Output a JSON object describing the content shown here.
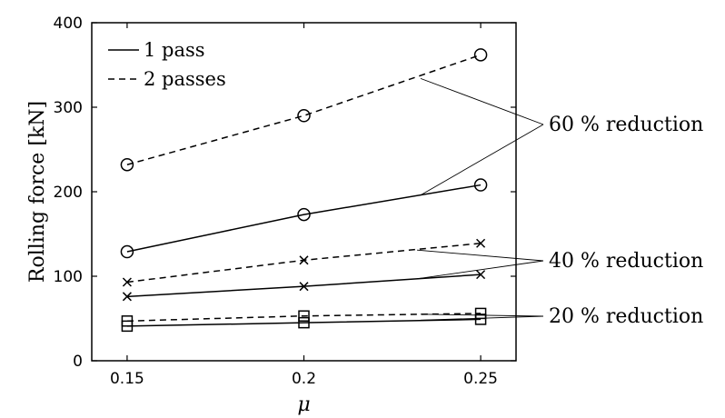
{
  "chart_data": {
    "type": "line",
    "title": "",
    "xlabel": "μ",
    "ylabel": "Rolling force [kN]",
    "x": [
      0.15,
      0.2,
      0.25
    ],
    "x_tick_labels": [
      "0.15",
      "0.2",
      "0.25"
    ],
    "xlim": [
      0.14,
      0.26
    ],
    "ylim": [
      0,
      400
    ],
    "y_ticks": [
      0,
      100,
      200,
      300,
      400
    ],
    "grid": false,
    "legend": {
      "position": "top-left",
      "entries": [
        {
          "label": "1 pass",
          "style": "solid"
        },
        {
          "label": "2 passes",
          "style": "dashed"
        }
      ]
    },
    "series": [
      {
        "passes": "1 pass",
        "reduction": "60 % reduction",
        "marker": "circle",
        "style": "solid",
        "values": [
          129,
          173,
          208
        ]
      },
      {
        "passes": "2 passes",
        "reduction": "60 % reduction",
        "marker": "circle",
        "style": "dashed",
        "values": [
          232,
          290,
          362
        ]
      },
      {
        "passes": "1 pass",
        "reduction": "40 % reduction",
        "marker": "x",
        "style": "solid",
        "values": [
          76,
          88,
          102
        ]
      },
      {
        "passes": "2 passes",
        "reduction": "40 % reduction",
        "marker": "x",
        "style": "dashed",
        "values": [
          93,
          119,
          139
        ]
      },
      {
        "passes": "1 pass",
        "reduction": "20 % reduction",
        "marker": "square",
        "style": "solid",
        "values": [
          41,
          45,
          49
        ]
      },
      {
        "passes": "2 passes",
        "reduction": "20 % reduction",
        "marker": "square",
        "style": "dashed",
        "values": [
          47,
          53,
          56
        ]
      }
    ],
    "annotations": [
      {
        "text": "60 % reduction",
        "targets": [
          [
            0.233,
            334
          ],
          [
            0.233,
            196
          ]
        ]
      },
      {
        "text": "40 % reduction",
        "targets": [
          [
            0.232,
            131
          ],
          [
            0.232,
            97
          ]
        ]
      },
      {
        "text": "20 % reduction",
        "targets": [
          [
            0.233,
            55
          ],
          [
            0.233,
            48
          ]
        ]
      }
    ]
  }
}
